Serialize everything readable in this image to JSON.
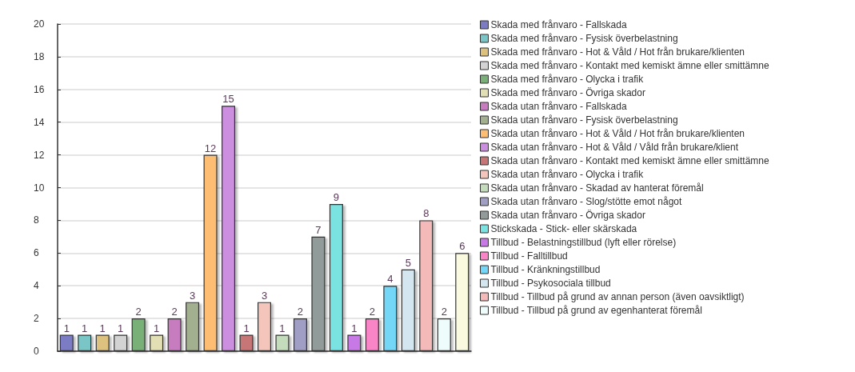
{
  "chart_data": {
    "type": "bar",
    "categories": [
      null,
      null,
      null,
      null,
      null,
      null,
      null,
      null,
      null,
      null,
      null,
      null,
      null,
      null,
      null,
      null,
      null,
      null,
      null,
      null,
      null,
      null,
      null
    ],
    "ylim": [
      0,
      20
    ],
    "yticks": [
      0,
      2,
      4,
      6,
      8,
      10,
      12,
      14,
      16,
      18,
      20
    ],
    "grid": "y",
    "legend": "right",
    "data_labels": true,
    "series": [
      {
        "name": "Skada med frånvaro - Fallskada",
        "color": "#7b7bc4",
        "values": [
          1,
          null,
          null,
          null,
          null,
          null,
          null,
          null,
          null,
          null,
          null,
          null,
          null,
          null,
          null,
          null,
          null,
          null,
          null,
          null,
          null,
          null,
          null
        ]
      },
      {
        "name": "Skada med frånvaro - Fysisk överbelastning",
        "color": "#7ac6c6",
        "values": [
          null,
          1,
          null,
          null,
          null,
          null,
          null,
          null,
          null,
          null,
          null,
          null,
          null,
          null,
          null,
          null,
          null,
          null,
          null,
          null,
          null,
          null,
          null
        ]
      },
      {
        "name": "Skada med frånvaro - Hot & Våld / Hot från brukare/klienten",
        "color": "#dcc27e",
        "values": [
          null,
          null,
          1,
          null,
          null,
          null,
          null,
          null,
          null,
          null,
          null,
          null,
          null,
          null,
          null,
          null,
          null,
          null,
          null,
          null,
          null,
          null,
          null
        ]
      },
      {
        "name": "Skada med frånvaro - Kontakt med kemiskt ämne eller smittämne",
        "color": "#d3d3d3",
        "values": [
          null,
          null,
          null,
          1,
          null,
          null,
          null,
          null,
          null,
          null,
          null,
          null,
          null,
          null,
          null,
          null,
          null,
          null,
          null,
          null,
          null,
          null,
          null
        ]
      },
      {
        "name": "Skada med frånvaro - Olycka i trafik",
        "color": "#78b078",
        "values": [
          null,
          null,
          null,
          null,
          2,
          null,
          null,
          null,
          null,
          null,
          null,
          null,
          null,
          null,
          null,
          null,
          null,
          null,
          null,
          null,
          null,
          null,
          null
        ]
      },
      {
        "name": "Skada med frånvaro - Övriga skador",
        "color": "#e2dfb4",
        "values": [
          null,
          null,
          null,
          null,
          null,
          1,
          null,
          null,
          null,
          null,
          null,
          null,
          null,
          null,
          null,
          null,
          null,
          null,
          null,
          null,
          null,
          null,
          null
        ]
      },
      {
        "name": "Skada utan frånvaro - Fallskada",
        "color": "#c77cc0",
        "values": [
          null,
          null,
          null,
          null,
          null,
          null,
          2,
          null,
          null,
          null,
          null,
          null,
          null,
          null,
          null,
          null,
          null,
          null,
          null,
          null,
          null,
          null,
          null
        ]
      },
      {
        "name": "Skada utan frånvaro - Fysisk överbelastning",
        "color": "#a3b08f",
        "values": [
          null,
          null,
          null,
          null,
          null,
          null,
          null,
          3,
          null,
          null,
          null,
          null,
          null,
          null,
          null,
          null,
          null,
          null,
          null,
          null,
          null,
          null,
          null
        ]
      },
      {
        "name": "Skada utan frånvaro - Hot & Våld / Hot från brukare/klienten",
        "color": "#fdbd73",
        "values": [
          null,
          null,
          null,
          null,
          null,
          null,
          null,
          null,
          12,
          null,
          null,
          null,
          null,
          null,
          null,
          null,
          null,
          null,
          null,
          null,
          null,
          null,
          null
        ]
      },
      {
        "name": "Skada utan frånvaro - Hot & Våld / Våld från brukare/klient",
        "color": "#cc8fe0",
        "values": [
          null,
          null,
          null,
          null,
          null,
          null,
          null,
          null,
          null,
          15,
          null,
          null,
          null,
          null,
          null,
          null,
          null,
          null,
          null,
          null,
          null,
          null,
          null
        ]
      },
      {
        "name": "Skada utan frånvaro - Kontakt med kemiskt ämne eller smittämne",
        "color": "#c67676",
        "values": [
          null,
          null,
          null,
          null,
          null,
          null,
          null,
          null,
          null,
          null,
          1,
          null,
          null,
          null,
          null,
          null,
          null,
          null,
          null,
          null,
          null,
          null,
          null
        ]
      },
      {
        "name": "Skada utan frånvaro - Olycka i trafik",
        "color": "#f4c6bb",
        "values": [
          null,
          null,
          null,
          null,
          null,
          null,
          null,
          null,
          null,
          null,
          null,
          3,
          null,
          null,
          null,
          null,
          null,
          null,
          null,
          null,
          null,
          null,
          null
        ]
      },
      {
        "name": "Skada utan frånvaro - Skadad av hanterat föremål",
        "color": "#c4dcbc",
        "values": [
          null,
          null,
          null,
          null,
          null,
          null,
          null,
          null,
          null,
          null,
          null,
          null,
          1,
          null,
          null,
          null,
          null,
          null,
          null,
          null,
          null,
          null,
          null
        ]
      },
      {
        "name": "Skada utan frånvaro - Slog/stötte emot något",
        "color": "#a09ec4",
        "values": [
          null,
          null,
          null,
          null,
          null,
          null,
          null,
          null,
          null,
          null,
          null,
          null,
          null,
          2,
          null,
          null,
          null,
          null,
          null,
          null,
          null,
          null,
          null
        ]
      },
      {
        "name": "Skada utan frånvaro - Övriga skador",
        "color": "#919c9a",
        "values": [
          null,
          null,
          null,
          null,
          null,
          null,
          null,
          null,
          null,
          null,
          null,
          null,
          null,
          null,
          7,
          null,
          null,
          null,
          null,
          null,
          null,
          null,
          null
        ]
      },
      {
        "name": "Stickskada - Stick- eller skärskada",
        "color": "#7ae2e0",
        "values": [
          null,
          null,
          null,
          null,
          null,
          null,
          null,
          null,
          null,
          null,
          null,
          null,
          null,
          null,
          null,
          9,
          null,
          null,
          null,
          null,
          null,
          null,
          null
        ]
      },
      {
        "name": "Tillbud - Belastningstillbud (lyft eller rörelse)",
        "color": "#c77ae6",
        "values": [
          null,
          null,
          null,
          null,
          null,
          null,
          null,
          null,
          null,
          null,
          null,
          null,
          null,
          null,
          null,
          null,
          1,
          null,
          null,
          null,
          null,
          null,
          null
        ]
      },
      {
        "name": "Tillbud - Falltillbud",
        "color": "#f985c6",
        "values": [
          null,
          null,
          null,
          null,
          null,
          null,
          null,
          null,
          null,
          null,
          null,
          null,
          null,
          null,
          null,
          null,
          null,
          2,
          null,
          null,
          null,
          null,
          null
        ]
      },
      {
        "name": "Tillbud - Kränkningstillbud",
        "color": "#74d7f7",
        "values": [
          null,
          null,
          null,
          null,
          null,
          null,
          null,
          null,
          null,
          null,
          null,
          null,
          null,
          null,
          null,
          null,
          null,
          null,
          4,
          null,
          null,
          null,
          null
        ]
      },
      {
        "name": "Tillbud - Psykosociala tillbud",
        "color": "#d4e6ef",
        "values": [
          null,
          null,
          null,
          null,
          null,
          null,
          null,
          null,
          null,
          null,
          null,
          null,
          null,
          null,
          null,
          null,
          null,
          null,
          null,
          5,
          null,
          null,
          null
        ]
      },
      {
        "name": "Tillbud - Tillbud på grund av annan person (även oavsiktligt)",
        "color": "#f4b9b9",
        "values": [
          null,
          null,
          null,
          null,
          null,
          null,
          null,
          null,
          null,
          null,
          null,
          null,
          null,
          null,
          null,
          null,
          null,
          null,
          null,
          null,
          8,
          null,
          null
        ]
      },
      {
        "name": "Tillbud - Tillbud på grund av egenhanterat föremål",
        "color": "#eefcfc",
        "values": [
          null,
          null,
          null,
          null,
          null,
          null,
          null,
          null,
          null,
          null,
          null,
          null,
          null,
          null,
          null,
          null,
          null,
          null,
          null,
          null,
          null,
          2,
          null
        ]
      },
      {
        "color": "#fafae0",
        "values": [
          null,
          null,
          null,
          null,
          null,
          null,
          null,
          null,
          null,
          null,
          null,
          null,
          null,
          null,
          null,
          null,
          null,
          null,
          null,
          null,
          null,
          null,
          6
        ]
      }
    ]
  }
}
